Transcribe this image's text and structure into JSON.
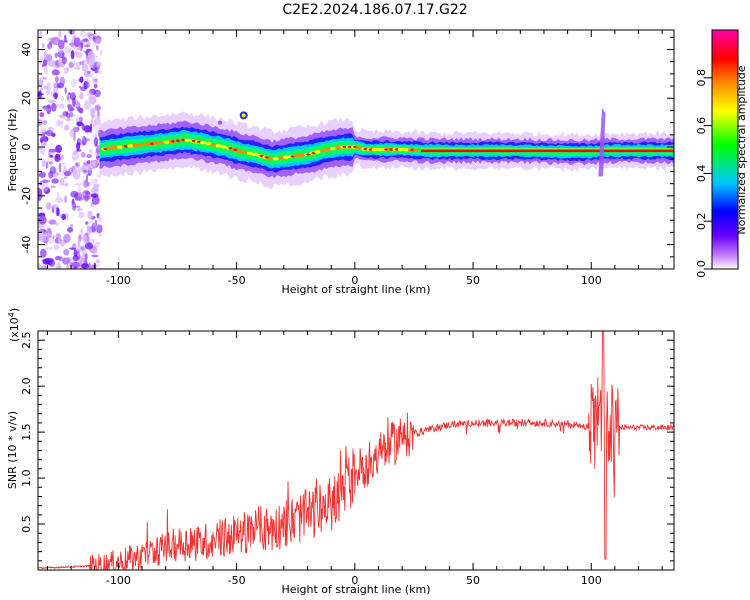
{
  "title": "C2E2.2024.186.07.17.G22",
  "chart_data": [
    {
      "type": "heatmap",
      "xlabel": "Height of straight line (km)",
      "ylabel": "Frequency (Hz)",
      "xlim": [
        -134,
        135
      ],
      "ylim": [
        -50,
        48
      ],
      "x_ticks": [
        -100,
        -50,
        0,
        50,
        100
      ],
      "y_ticks": [
        -40,
        -20,
        0,
        20,
        40
      ],
      "colorbar": {
        "label": "Normalized spectral amplitude",
        "range": [
          0,
          1
        ],
        "ticks": [
          "0.0",
          "0.2",
          "0.4",
          "0.6",
          "0.8"
        ],
        "colors": [
          "#ffffff",
          "#cc88ff",
          "#6600ff",
          "#0000ff",
          "#00c8ff",
          "#00ff00",
          "#ffff00",
          "#ff8800",
          "#ff0000",
          "#ff00aa"
        ]
      },
      "ridge": {
        "x": [
          -108,
          -100,
          -90,
          -80,
          -72,
          -65,
          -55,
          -48,
          -42,
          -35,
          -28,
          -20,
          -12,
          -5,
          0,
          5,
          10,
          20,
          30,
          50,
          70,
          90,
          100,
          105,
          110,
          120,
          135
        ],
        "y": [
          -1,
          0,
          1,
          2,
          3,
          2,
          0,
          -2,
          -3,
          -5,
          -4,
          -3,
          -1,
          0,
          0,
          -1,
          -1,
          -1,
          -1.5,
          -1.5,
          -1.5,
          -2,
          -2,
          -1.5,
          -1.5,
          -1.5,
          -1.5
        ]
      }
    },
    {
      "type": "line",
      "xlabel": "Height of straight line (km)",
      "ylabel": "SNR (10 * v/v)",
      "y_multiplier": "(x10",
      "y_multiplier_exp": "4",
      "y_multiplier_close": ")",
      "xlim": [
        -134,
        135
      ],
      "ylim": [
        0,
        2.6
      ],
      "x_ticks": [
        -100,
        -50,
        0,
        50,
        100
      ],
      "y_ticks": [
        "0.5",
        "1.0",
        "1.5",
        "2.0",
        "2.5"
      ],
      "color": "#ee3333",
      "envelope": {
        "x": [
          -134,
          -115,
          -105,
          -95,
          -85,
          -75,
          -65,
          -55,
          -45,
          -35,
          -25,
          -15,
          -8,
          -3,
          0,
          5,
          10,
          15,
          20,
          30,
          40,
          50,
          60,
          80,
          95,
          100,
          103,
          106,
          109,
          112,
          120,
          135
        ],
        "y": [
          0.02,
          0.04,
          0.06,
          0.12,
          0.2,
          0.28,
          0.3,
          0.35,
          0.42,
          0.45,
          0.55,
          0.65,
          0.75,
          0.95,
          1.05,
          1.15,
          1.25,
          1.35,
          1.45,
          1.52,
          1.58,
          1.6,
          1.6,
          1.6,
          1.58,
          1.55,
          1.6,
          1.4,
          1.5,
          1.55,
          1.55,
          1.55
        ]
      }
    }
  ]
}
